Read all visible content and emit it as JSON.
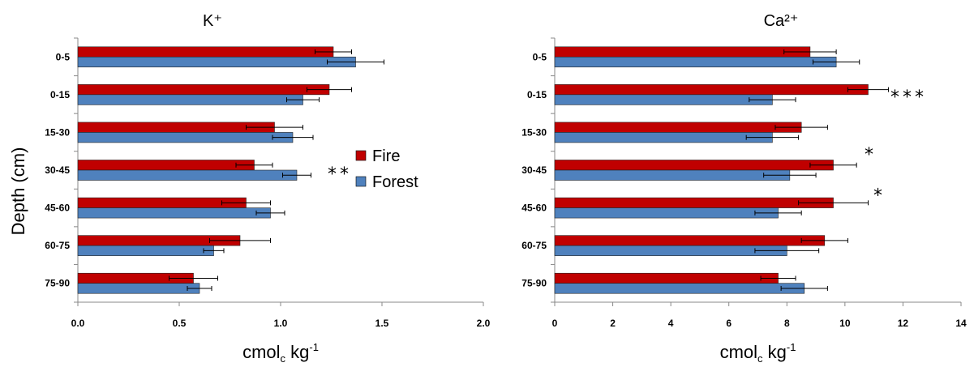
{
  "y_axis_label": "Depth (cm)",
  "legend": {
    "items": [
      {
        "label": "Fire",
        "color": "#c00000"
      },
      {
        "label": "Forest",
        "color": "#4f81bd"
      }
    ]
  },
  "chart_data": [
    {
      "type": "bar",
      "orientation": "horizontal",
      "title": "K⁺",
      "xlabel": "cmol",
      "xlabel_sub": "c",
      "xlabel_unit": " kg",
      "xlabel_sup": "-1",
      "ylabel": "Depth (cm)",
      "xlim": [
        0,
        2.0
      ],
      "xticks": [
        "0.0",
        "0.5",
        "1.0",
        "1.5",
        "2.0"
      ],
      "xtick_values": [
        0,
        0.5,
        1.0,
        1.5,
        2.0
      ],
      "categories": [
        "0-5",
        "0-15",
        "15-30",
        "30-45",
        "45-60",
        "60-75",
        "75-90"
      ],
      "series": [
        {
          "name": "Fire",
          "color": "#c00000",
          "values": [
            1.26,
            1.24,
            0.97,
            0.87,
            0.83,
            0.8,
            0.57
          ],
          "errors": [
            0.09,
            0.11,
            0.14,
            0.09,
            0.12,
            0.15,
            0.12
          ]
        },
        {
          "name": "Forest",
          "color": "#4f81bd",
          "values": [
            1.37,
            1.11,
            1.06,
            1.08,
            0.95,
            0.67,
            0.6
          ],
          "errors": [
            0.14,
            0.08,
            0.1,
            0.07,
            0.07,
            0.05,
            0.06
          ]
        }
      ],
      "annotations": [
        {
          "category": "30-45",
          "text": "**"
        }
      ]
    },
    {
      "type": "bar",
      "orientation": "horizontal",
      "title": "Ca²⁺",
      "xlabel": "cmol",
      "xlabel_sub": "c",
      "xlabel_unit": " kg",
      "xlabel_sup": "-1",
      "ylabel": "",
      "xlim": [
        0,
        14
      ],
      "xticks": [
        "0",
        "2",
        "4",
        "6",
        "8",
        "10",
        "12",
        "14"
      ],
      "xtick_values": [
        0,
        2,
        4,
        6,
        8,
        10,
        12,
        14
      ],
      "categories": [
        "0-5",
        "0-15",
        "15-30",
        "30-45",
        "45-60",
        "60-75",
        "75-90"
      ],
      "series": [
        {
          "name": "Fire",
          "color": "#c00000",
          "values": [
            8.8,
            10.8,
            8.5,
            9.6,
            9.6,
            9.3,
            7.7
          ],
          "errors": [
            0.9,
            0.7,
            0.9,
            0.8,
            1.2,
            0.8,
            0.6
          ]
        },
        {
          "name": "Forest",
          "color": "#4f81bd",
          "values": [
            9.7,
            7.5,
            7.5,
            8.1,
            7.7,
            8.0,
            8.6
          ],
          "errors": [
            0.8,
            0.8,
            0.9,
            0.9,
            0.8,
            1.1,
            0.8
          ]
        }
      ],
      "annotations": [
        {
          "category": "0-15",
          "text": "***"
        },
        {
          "category": "30-45",
          "text": "*"
        },
        {
          "category": "45-60",
          "text": "*"
        }
      ]
    }
  ]
}
